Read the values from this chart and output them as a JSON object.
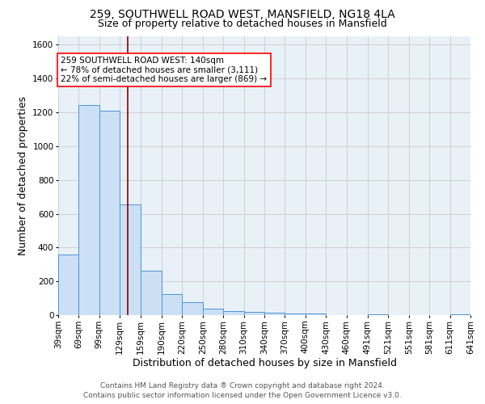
{
  "title_line1": "259, SOUTHWELL ROAD WEST, MANSFIELD, NG18 4LA",
  "title_line2": "Size of property relative to detached houses in Mansfield",
  "xlabel": "Distribution of detached houses by size in Mansfield",
  "ylabel": "Number of detached properties",
  "footer_line1": "Contains HM Land Registry data ® Crown copyright and database right 2024.",
  "footer_line2": "Contains public sector information licensed under the Open Government Licence v3.0.",
  "annotation_line1": "259 SOUTHWELL ROAD WEST: 140sqm",
  "annotation_line2": "← 78% of detached houses are smaller (3,111)",
  "annotation_line3": "22% of semi-detached houses are larger (869) →",
  "bar_edges": [
    39,
    69,
    99,
    129,
    159,
    190,
    220,
    250,
    280,
    310,
    340,
    370,
    400,
    430,
    460,
    491,
    521,
    551,
    581,
    611,
    641
  ],
  "bar_heights": [
    360,
    1245,
    1210,
    655,
    265,
    125,
    75,
    38,
    25,
    18,
    14,
    8,
    10,
    0,
    0,
    5,
    0,
    0,
    0,
    5
  ],
  "bar_fill_color": "#cce0f5",
  "bar_edge_color": "#4d94d4",
  "vline_x": 140,
  "vline_color": "#8b0000",
  "ylim": [
    0,
    1650
  ],
  "yticks": [
    0,
    200,
    400,
    600,
    800,
    1000,
    1200,
    1400,
    1600
  ],
  "grid_color": "#cccccc",
  "bg_color": "#e8f0f8",
  "title_fontsize": 10,
  "subtitle_fontsize": 9,
  "axis_label_fontsize": 9,
  "tick_fontsize": 7.5,
  "annotation_fontsize": 7.5,
  "footer_fontsize": 6.5
}
